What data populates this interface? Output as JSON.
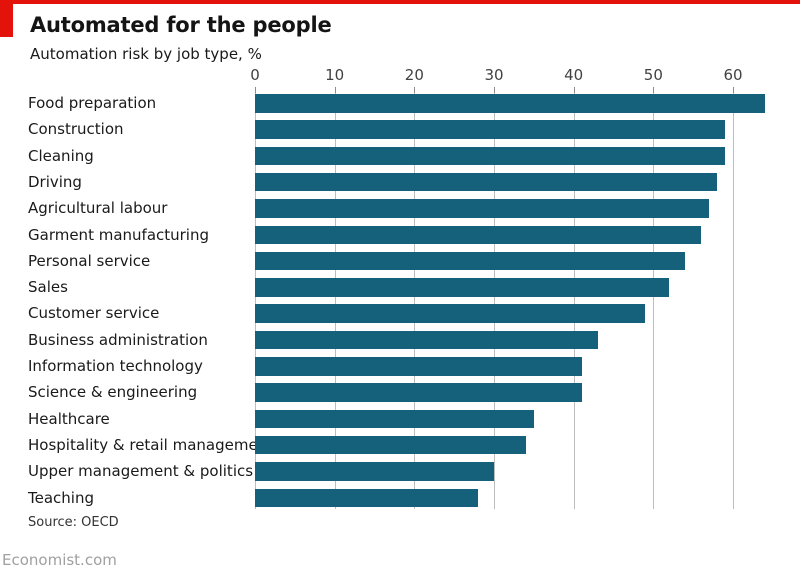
{
  "header": {
    "title": "Automated for the people",
    "subtitle": "Automation risk by job type, %"
  },
  "chart_data": {
    "type": "bar",
    "orientation": "horizontal",
    "title": "Automated for the people",
    "subtitle": "Automation risk by job type, %",
    "xlabel": "",
    "ylabel": "",
    "categories": [
      "Food preparation",
      "Construction",
      "Cleaning",
      "Driving",
      "Agricultural labour",
      "Garment manufacturing",
      "Personal service",
      "Sales",
      "Customer service",
      "Business administration",
      "Information technology",
      "Science & engineering",
      "Healthcare",
      "Hospitality & retail management",
      "Upper management & politics",
      "Teaching"
    ],
    "values": [
      64,
      59,
      59,
      58,
      57,
      56,
      54,
      52,
      49,
      43,
      41,
      41,
      35,
      34,
      30,
      28
    ],
    "xticks": [
      0,
      10,
      20,
      30,
      40,
      50,
      60
    ],
    "xlim": [
      0,
      64
    ],
    "grid": "vertical",
    "legend": "none"
  },
  "footer": {
    "source": "Source: OECD",
    "site": "Economist.com"
  },
  "colors": {
    "accent_red": "#e3120b",
    "bar": "#15607a",
    "gridline": "#bdbdbd",
    "title_text": "#141414",
    "axis_text": "#424242",
    "footer_text": "#a0a0a0"
  }
}
